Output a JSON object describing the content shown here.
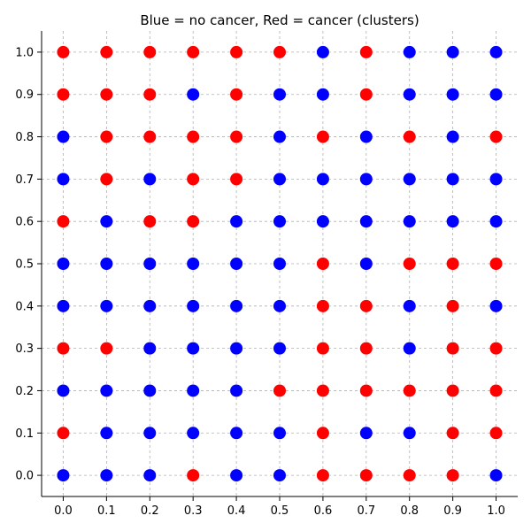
{
  "chart_data": {
    "type": "scatter",
    "title": "Blue = no cancer, Red = cancer (clusters)",
    "xlabel": "",
    "ylabel": "",
    "xlim": [
      -0.05,
      1.05
    ],
    "ylim": [
      -0.05,
      1.05
    ],
    "x_ticks": [
      "0.0",
      "0.1",
      "0.2",
      "0.3",
      "0.4",
      "0.5",
      "0.6",
      "0.7",
      "0.8",
      "0.9",
      "1.0"
    ],
    "y_ticks": [
      "0.0",
      "0.1",
      "0.2",
      "0.3",
      "0.4",
      "0.5",
      "0.6",
      "0.7",
      "0.8",
      "0.9",
      "1.0"
    ],
    "grid": true,
    "colors": {
      "no_cancer": "#0000ff",
      "cancer": "#ff0000"
    },
    "grid_x": [
      0.0,
      0.1,
      0.2,
      0.3,
      0.4,
      0.5,
      0.6,
      0.7,
      0.8,
      0.9,
      1.0
    ],
    "rows": [
      {
        "y": 1.0,
        "classes": "RRRRRRBRBBB"
      },
      {
        "y": 0.9,
        "classes": "RRRBRBBRBBB"
      },
      {
        "y": 0.8,
        "classes": "BRRRRBRBRBR"
      },
      {
        "y": 0.7,
        "classes": "BRBRRBBBBBB"
      },
      {
        "y": 0.6,
        "classes": "RBRRBBBBBBB"
      },
      {
        "y": 0.5,
        "classes": "BBBBBBRBRRR"
      },
      {
        "y": 0.4,
        "classes": "BBBBBBRRBRB"
      },
      {
        "y": 0.3,
        "classes": "RRBBBBRRBRR"
      },
      {
        "y": 0.2,
        "classes": "BBBBBRRRRRR"
      },
      {
        "y": 0.1,
        "classes": "RBBBBBRBBRR"
      },
      {
        "y": 0.0,
        "classes": "BBBRBBRRRRB"
      }
    ]
  }
}
